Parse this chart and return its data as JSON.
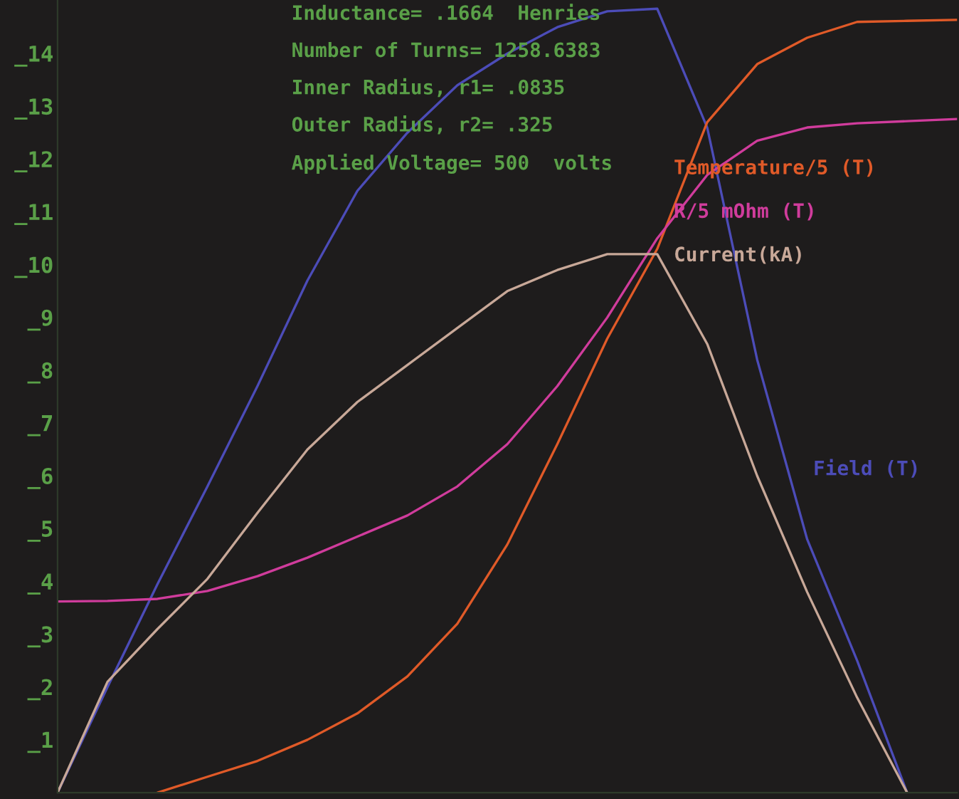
{
  "chart_data": {
    "type": "line",
    "annotations": [
      "Inductance= .1664  Henries",
      "Number of Turns= 1258.6383",
      "Inner Radius, r1= .0835",
      "Outer Radius, r2= .325",
      "Applied Voltage= 500  volts"
    ],
    "categories": [
      null,
      null,
      null,
      null,
      null,
      null,
      null,
      null,
      null,
      null,
      null,
      null,
      null,
      null,
      null,
      null,
      null,
      null,
      null
    ],
    "series": [
      {
        "name": "Field (T)",
        "color": "#4c4cb8",
        "values": [
          0,
          2.0,
          3.95,
          5.8,
          7.7,
          9.7,
          11.4,
          12.5,
          13.4,
          14.0,
          14.5,
          14.8,
          14.85,
          12.6,
          8.2,
          4.8,
          2.5,
          0,
          null
        ]
      },
      {
        "name": "Temperature/5 (T)",
        "color": "#e05a28",
        "values": [
          null,
          null,
          0,
          0.3,
          0.6,
          1.0,
          1.5,
          2.2,
          3.2,
          4.7,
          6.6,
          8.6,
          10.3,
          12.7,
          13.8,
          14.3,
          14.6,
          14.62,
          14.64
        ]
      },
      {
        "name": "R/5 mOhm (T)",
        "color": "#d03c9c",
        "values": [
          3.62,
          3.63,
          3.67,
          3.82,
          4.1,
          4.45,
          4.85,
          5.25,
          5.8,
          6.6,
          7.7,
          9.0,
          10.5,
          11.7,
          12.35,
          12.6,
          12.68,
          12.72,
          12.76
        ]
      },
      {
        "name": "Current(kA)",
        "color": "#c8a898",
        "values": [
          0,
          2.1,
          3.1,
          4.05,
          5.3,
          6.5,
          7.4,
          8.1,
          8.8,
          9.5,
          9.9,
          10.2,
          10.2,
          8.5,
          6.0,
          3.8,
          1.8,
          0,
          null
        ]
      }
    ],
    "ylim": [
      0,
      15
    ],
    "yticks": [
      {
        "value": 1,
        "label": "_1"
      },
      {
        "value": 2,
        "label": "_2"
      },
      {
        "value": 3,
        "label": "_3"
      },
      {
        "value": 4,
        "label": "_4"
      },
      {
        "value": 5,
        "label": "_5"
      },
      {
        "value": 6,
        "label": "_6"
      },
      {
        "value": 7,
        "label": "_7"
      },
      {
        "value": 8,
        "label": "_8"
      },
      {
        "value": 9,
        "label": "_9"
      },
      {
        "value": 10,
        "label": "_10"
      },
      {
        "value": 11,
        "label": "_11"
      },
      {
        "value": 12,
        "label": "_12"
      },
      {
        "value": 13,
        "label": "_13"
      },
      {
        "value": 14,
        "label": "_14"
      }
    ],
    "tick_labels": "y",
    "grid": false,
    "legend": false,
    "marker": "none",
    "line_style": "solid"
  }
}
